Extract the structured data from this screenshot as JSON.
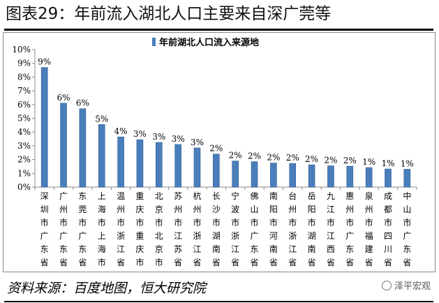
{
  "header": {
    "title": "图表29：年前流入湖北人口主要来自深广莞等"
  },
  "footer": {
    "source": "资料来源：百度地图，恒大研究院",
    "watermark": "泽平宏观"
  },
  "colors": {
    "bar": "#4a7ebb",
    "bar_dark": "#2f5f94",
    "axis": "#888888"
  },
  "chart_data": {
    "type": "bar",
    "legend": "年前湖北人口流入来源地",
    "legend_position": "top-center",
    "categories": [
      "深圳市广东省",
      "广州市广东省",
      "东莞市广东省",
      "上海市上海市",
      "温州市浙江省",
      "重庆市重庆市",
      "北京市北京市",
      "苏州市江苏省",
      "杭州市浙江省",
      "长沙市湖南省",
      "宁波市浙江省",
      "佛山市广东省",
      "南阳市河南省",
      "台州市浙江省",
      "岳阳市湖南省",
      "九江市江西省",
      "惠州市广东省",
      "泉州市福建省",
      "成都市四川省",
      "中山市广东省"
    ],
    "values": [
      8.7,
      6.1,
      5.7,
      4.55,
      3.65,
      3.45,
      3.25,
      3.1,
      2.85,
      2.4,
      1.9,
      1.85,
      1.75,
      1.72,
      1.62,
      1.55,
      1.52,
      1.42,
      1.32,
      1.3
    ],
    "data_labels": [
      "9%",
      "6%",
      "6%",
      "5%",
      "4%",
      "3%",
      "3%",
      "3%",
      "3%",
      "2%",
      "2%",
      "2%",
      "2%",
      "2%",
      "2%",
      "2%",
      "2%",
      "1%",
      "1%",
      "1%"
    ],
    "y_ticks": [
      "0%",
      "1%",
      "2%",
      "3%",
      "4%",
      "5%",
      "6%",
      "7%",
      "8%",
      "9%",
      "10%"
    ],
    "ylim": [
      0,
      10
    ],
    "grid": false
  }
}
